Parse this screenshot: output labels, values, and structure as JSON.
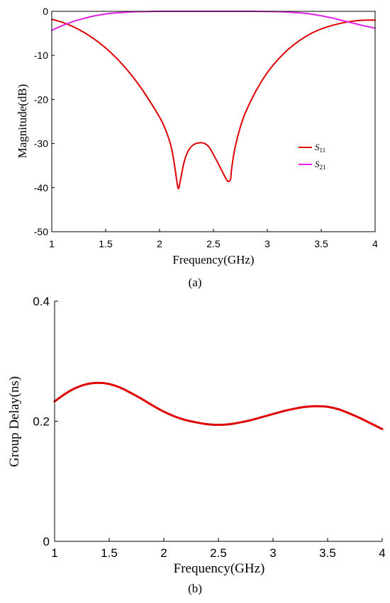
{
  "chart_data": [
    {
      "type": "line",
      "caption": "(a)",
      "xlabel": "Frequency(GHz)",
      "ylabel": "Magnitude(dB)",
      "xlim": [
        1,
        4
      ],
      "ylim": [
        -50,
        0
      ],
      "xticks": [
        "1",
        "1.5",
        "2",
        "2.5",
        "3",
        "3.5",
        "4"
      ],
      "yticks": [
        "0",
        "-10",
        "-20",
        "-30",
        "-40",
        "-50"
      ],
      "legend_position": "center-right",
      "series": [
        {
          "name": "S11",
          "name_main": "S",
          "name_sub": "11",
          "color": "#e00000",
          "x": [
            1.0,
            1.1,
            1.2,
            1.3,
            1.4,
            1.5,
            1.6,
            1.7,
            1.8,
            1.9,
            2.0,
            2.05,
            2.1,
            2.13,
            2.16,
            2.17,
            2.18,
            2.2,
            2.23,
            2.27,
            2.32,
            2.38,
            2.42,
            2.46,
            2.5,
            2.55,
            2.6,
            2.63,
            2.65,
            2.66,
            2.67,
            2.7,
            2.75,
            2.8,
            2.9,
            3.0,
            3.1,
            3.2,
            3.3,
            3.4,
            3.5,
            3.6,
            3.7,
            3.8,
            3.9,
            4.0
          ],
          "y": [
            -1.8,
            -2.5,
            -3.5,
            -4.8,
            -6.4,
            -8.3,
            -10.6,
            -13.3,
            -16.4,
            -20.0,
            -24.0,
            -26.5,
            -30.0,
            -33.5,
            -38.5,
            -40.0,
            -40.0,
            -37.5,
            -34.0,
            -31.5,
            -30.2,
            -29.8,
            -30.0,
            -30.8,
            -32.5,
            -34.8,
            -37.2,
            -38.5,
            -38.5,
            -38.0,
            -35.5,
            -31.0,
            -26.2,
            -22.8,
            -17.8,
            -13.9,
            -10.9,
            -8.5,
            -6.6,
            -5.1,
            -4.0,
            -3.2,
            -2.6,
            -2.2,
            -2.0,
            -2.0
          ]
        },
        {
          "name": "S21",
          "name_main": "S",
          "name_sub": "21",
          "color": "#e020e0",
          "x": [
            1.0,
            1.1,
            1.2,
            1.3,
            1.4,
            1.5,
            1.6,
            1.7,
            1.8,
            1.9,
            2.0,
            2.2,
            2.4,
            2.6,
            2.8,
            3.0,
            3.1,
            3.2,
            3.3,
            3.4,
            3.5,
            3.6,
            3.7,
            3.8,
            3.9,
            4.0
          ],
          "y": [
            -4.3,
            -3.2,
            -2.3,
            -1.6,
            -1.0,
            -0.6,
            -0.35,
            -0.18,
            -0.08,
            -0.03,
            -0.01,
            0.0,
            0.0,
            0.0,
            0.0,
            -0.03,
            -0.08,
            -0.18,
            -0.35,
            -0.6,
            -1.0,
            -1.5,
            -2.1,
            -2.7,
            -3.3,
            -3.8
          ]
        }
      ]
    },
    {
      "type": "line",
      "caption": "(b)",
      "xlabel": "Frequency(GHz)",
      "ylabel": "Group Delay(ns)",
      "xlim": [
        1,
        4
      ],
      "ylim": [
        0,
        0.4
      ],
      "xticks": [
        "1",
        "1.5",
        "2",
        "2.5",
        "3",
        "3.5",
        "4"
      ],
      "yticks": [
        "0",
        "0.2",
        "0.4"
      ],
      "series": [
        {
          "color": "#e00000",
          "x": [
            1.0,
            1.1,
            1.2,
            1.3,
            1.4,
            1.5,
            1.6,
            1.7,
            1.8,
            1.9,
            2.0,
            2.1,
            2.2,
            2.3,
            2.4,
            2.5,
            2.6,
            2.7,
            2.8,
            2.9,
            3.0,
            3.1,
            3.2,
            3.3,
            3.4,
            3.5,
            3.6,
            3.7,
            3.8,
            3.9,
            4.0
          ],
          "y": [
            0.233,
            0.246,
            0.256,
            0.262,
            0.264,
            0.262,
            0.256,
            0.247,
            0.237,
            0.226,
            0.216,
            0.208,
            0.202,
            0.198,
            0.195,
            0.194,
            0.195,
            0.198,
            0.202,
            0.207,
            0.212,
            0.217,
            0.221,
            0.224,
            0.225,
            0.224,
            0.22,
            0.213,
            0.205,
            0.196,
            0.187
          ]
        }
      ]
    }
  ]
}
